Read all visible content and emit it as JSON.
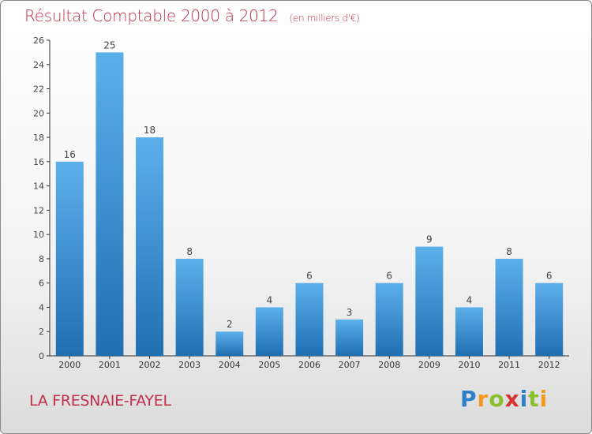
{
  "header": {
    "title": "Résultat Comptable 2000 à 2012",
    "subtitle": "(en milliers d'€)"
  },
  "footer": {
    "place": "LA FRESNAIE-FAYEL",
    "logo": {
      "letters": [
        "P",
        "r",
        "o",
        "x",
        "i",
        "t",
        "i"
      ],
      "colors": [
        "#2f7fc9",
        "#f39a1e",
        "#8cbf2e",
        "#d8342f",
        "#2f7fc9",
        "#8cbf2e",
        "#f39a1e"
      ]
    }
  },
  "colors": {
    "accent": "#c0304a",
    "bar_top": "#5cb0ea",
    "bar_bottom": "#1f6fb3"
  },
  "chart_data": {
    "type": "bar",
    "title": "Résultat Comptable 2000 à 2012",
    "subtitle": "(en milliers d'€)",
    "xlabel": "",
    "ylabel": "",
    "categories": [
      "2000",
      "2001",
      "2002",
      "2003",
      "2004",
      "2005",
      "2006",
      "2007",
      "2008",
      "2009",
      "2010",
      "2011",
      "2012"
    ],
    "values": [
      16,
      25,
      18,
      8,
      2,
      4,
      6,
      3,
      6,
      9,
      4,
      8,
      6
    ],
    "ylim": [
      0,
      26
    ],
    "yticks": [
      0,
      2,
      4,
      6,
      8,
      10,
      12,
      14,
      16,
      18,
      20,
      22,
      24,
      26
    ],
    "grid": false,
    "legend": "none"
  }
}
